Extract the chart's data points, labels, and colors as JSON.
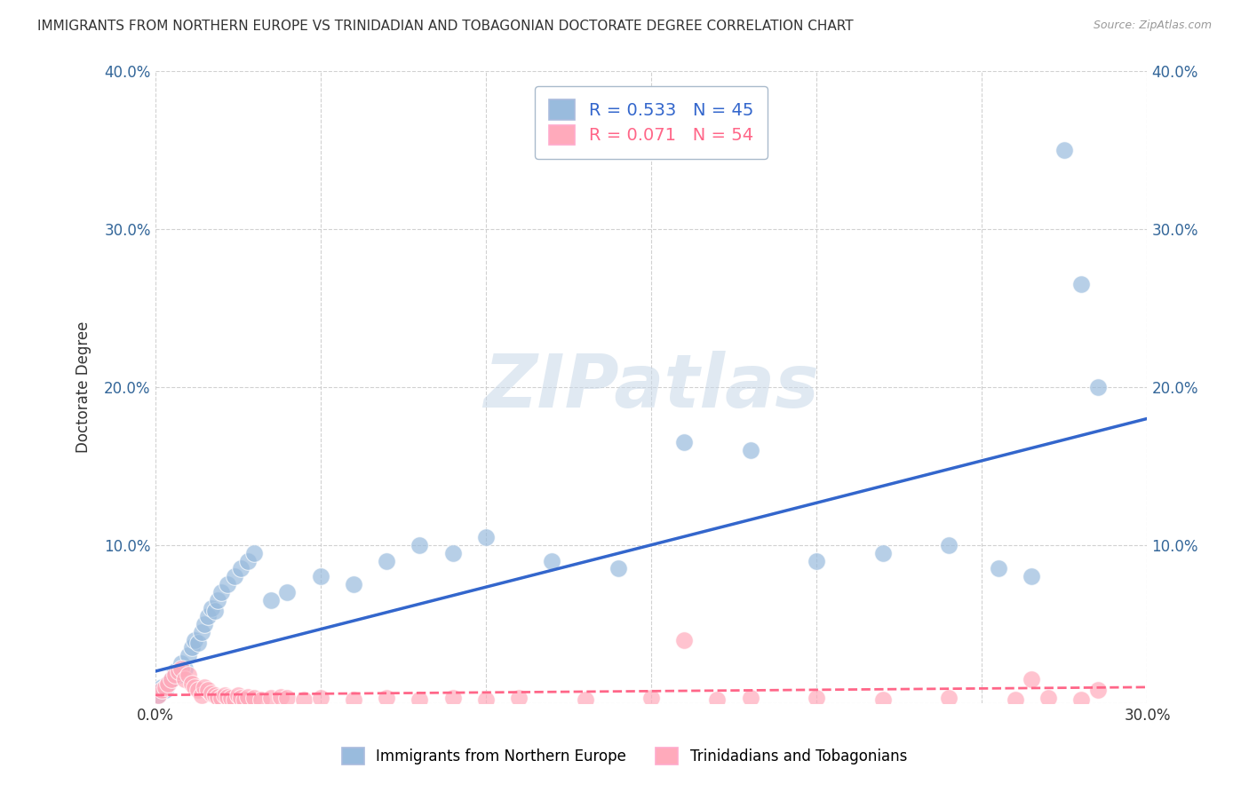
{
  "title": "IMMIGRANTS FROM NORTHERN EUROPE VS TRINIDADIAN AND TOBAGONIAN DOCTORATE DEGREE CORRELATION CHART",
  "source": "Source: ZipAtlas.com",
  "ylabel": "Doctorate Degree",
  "xlabel": "",
  "blue_label": "Immigrants from Northern Europe",
  "pink_label": "Trinidadians and Tobagonians",
  "blue_R": 0.533,
  "blue_N": 45,
  "pink_R": 0.071,
  "pink_N": 54,
  "xlim": [
    0,
    0.3
  ],
  "ylim": [
    0,
    0.4
  ],
  "background_color": "#ffffff",
  "blue_color": "#99bbdd",
  "pink_color": "#ffaabb",
  "blue_line_color": "#3366cc",
  "pink_line_color": "#ff6688",
  "watermark": "ZIPatlas",
  "blue_x": [
    0.001,
    0.002,
    0.003,
    0.004,
    0.005,
    0.006,
    0.007,
    0.008,
    0.009,
    0.01,
    0.011,
    0.012,
    0.013,
    0.014,
    0.015,
    0.016,
    0.017,
    0.018,
    0.019,
    0.02,
    0.022,
    0.024,
    0.026,
    0.028,
    0.03,
    0.035,
    0.04,
    0.05,
    0.06,
    0.07,
    0.08,
    0.09,
    0.1,
    0.12,
    0.14,
    0.16,
    0.18,
    0.2,
    0.22,
    0.24,
    0.255,
    0.265,
    0.275,
    0.28,
    0.285
  ],
  "blue_y": [
    0.005,
    0.01,
    0.008,
    0.012,
    0.015,
    0.02,
    0.018,
    0.025,
    0.022,
    0.03,
    0.035,
    0.04,
    0.038,
    0.045,
    0.05,
    0.055,
    0.06,
    0.058,
    0.065,
    0.07,
    0.075,
    0.08,
    0.085,
    0.09,
    0.095,
    0.065,
    0.07,
    0.08,
    0.075,
    0.09,
    0.1,
    0.095,
    0.105,
    0.09,
    0.085,
    0.165,
    0.16,
    0.09,
    0.095,
    0.1,
    0.085,
    0.08,
    0.35,
    0.265,
    0.2
  ],
  "pink_x": [
    0.001,
    0.002,
    0.003,
    0.004,
    0.005,
    0.006,
    0.007,
    0.008,
    0.009,
    0.01,
    0.011,
    0.012,
    0.013,
    0.014,
    0.015,
    0.016,
    0.017,
    0.018,
    0.019,
    0.02,
    0.021,
    0.022,
    0.023,
    0.024,
    0.025,
    0.026,
    0.027,
    0.028,
    0.03,
    0.032,
    0.035,
    0.038,
    0.04,
    0.045,
    0.05,
    0.06,
    0.07,
    0.08,
    0.09,
    0.1,
    0.11,
    0.13,
    0.15,
    0.16,
    0.17,
    0.18,
    0.2,
    0.22,
    0.24,
    0.26,
    0.265,
    0.27,
    0.28,
    0.285
  ],
  "pink_y": [
    0.005,
    0.008,
    0.01,
    0.012,
    0.015,
    0.018,
    0.02,
    0.022,
    0.015,
    0.018,
    0.012,
    0.01,
    0.008,
    0.005,
    0.01,
    0.008,
    0.006,
    0.005,
    0.004,
    0.003,
    0.005,
    0.004,
    0.003,
    0.002,
    0.005,
    0.003,
    0.002,
    0.004,
    0.003,
    0.002,
    0.003,
    0.004,
    0.003,
    0.002,
    0.003,
    0.002,
    0.003,
    0.002,
    0.003,
    0.002,
    0.003,
    0.002,
    0.003,
    0.04,
    0.002,
    0.003,
    0.003,
    0.002,
    0.003,
    0.002,
    0.015,
    0.003,
    0.002,
    0.008
  ]
}
